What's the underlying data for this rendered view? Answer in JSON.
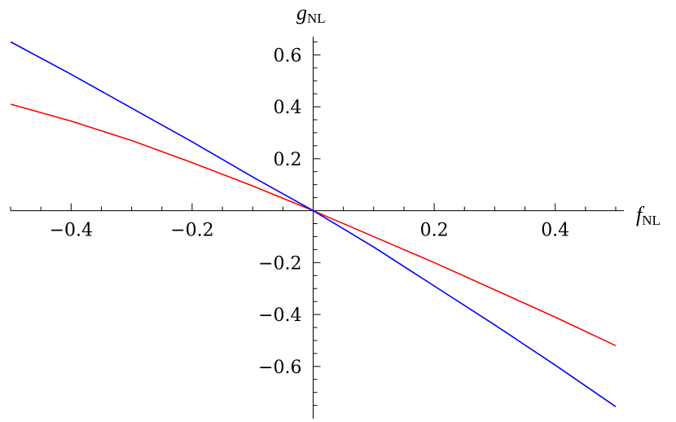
{
  "chart_data": {
    "type": "line",
    "title": "",
    "xlabel": {
      "symbol": "f",
      "subscript": "NL"
    },
    "ylabel": {
      "symbol": "g",
      "subscript": "NL"
    },
    "xlim": [
      -0.5,
      0.5
    ],
    "ylim": [
      -0.77,
      0.67
    ],
    "x_ticks": [
      -0.4,
      -0.2,
      0.2,
      0.4
    ],
    "x_tick_labels": [
      "−0.4",
      "−0.2",
      "0.2",
      "0.4"
    ],
    "y_ticks": [
      0.6,
      0.4,
      0.2,
      -0.2,
      -0.4,
      -0.6
    ],
    "y_tick_labels": [
      "0.6",
      "0.4",
      "0.2",
      "−0.2",
      "−0.4",
      "−0.6"
    ],
    "x_minor_step": 0.05,
    "y_minor_step": 0.05,
    "grid": false,
    "legend": "none",
    "series": [
      {
        "color": "#ff0000",
        "x": [
          -0.5,
          -0.4,
          -0.3,
          -0.2,
          -0.1,
          0.0,
          0.1,
          0.2,
          0.3,
          0.4,
          0.5
        ],
        "y": [
          0.41,
          0.345,
          0.27,
          0.185,
          0.095,
          0.0,
          -0.1,
          -0.2,
          -0.305,
          -0.41,
          -0.52
        ]
      },
      {
        "color": "#0000ff",
        "x": [
          -0.5,
          -0.4,
          -0.3,
          -0.2,
          -0.1,
          0.0,
          0.1,
          0.2,
          0.3,
          0.4,
          0.5
        ],
        "y": [
          0.65,
          0.525,
          0.395,
          0.265,
          0.13,
          0.0,
          -0.14,
          -0.29,
          -0.44,
          -0.595,
          -0.755
        ]
      }
    ]
  }
}
